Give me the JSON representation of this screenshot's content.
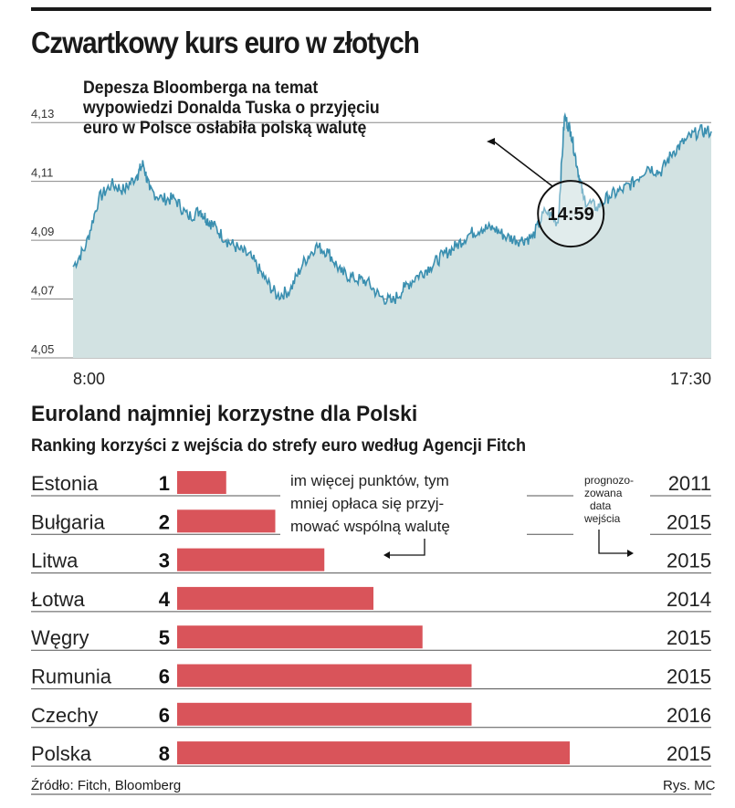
{
  "chart_data": [
    {
      "type": "line",
      "title": "Czwartkowy kurs euro w złotych",
      "x_range_labels": [
        "8:00",
        "17:30"
      ],
      "ylim": [
        4.05,
        4.14
      ],
      "y_ticks": [
        "4,13",
        "4,11",
        "4,09",
        "4,07",
        "4,05"
      ],
      "y_tick_values": [
        4.13,
        4.11,
        4.09,
        4.07,
        4.05
      ],
      "grid": true,
      "fill": "area",
      "x": [
        0,
        0.02,
        0.04,
        0.06,
        0.08,
        0.1,
        0.11,
        0.12,
        0.14,
        0.16,
        0.18,
        0.2,
        0.21,
        0.22,
        0.24,
        0.26,
        0.28,
        0.3,
        0.32,
        0.34,
        0.36,
        0.38,
        0.4,
        0.42,
        0.44,
        0.46,
        0.48,
        0.5,
        0.52,
        0.54,
        0.56,
        0.58,
        0.6,
        0.62,
        0.64,
        0.66,
        0.68,
        0.7,
        0.72,
        0.74,
        0.76,
        0.77,
        0.78,
        0.79,
        0.8,
        0.82,
        0.84,
        0.86,
        0.88,
        0.9,
        0.92,
        0.94,
        0.96,
        0.98,
        1.0
      ],
      "values": [
        4.081,
        4.088,
        4.104,
        4.109,
        4.107,
        4.112,
        4.116,
        4.107,
        4.104,
        4.104,
        4.098,
        4.1,
        4.097,
        4.095,
        4.09,
        4.087,
        4.084,
        4.077,
        4.071,
        4.073,
        4.082,
        4.088,
        4.086,
        4.079,
        4.077,
        4.076,
        4.071,
        4.069,
        4.074,
        4.078,
        4.081,
        4.085,
        4.088,
        4.092,
        4.094,
        4.094,
        4.091,
        4.09,
        4.091,
        4.1,
        4.096,
        4.132,
        4.127,
        4.115,
        4.104,
        4.101,
        4.105,
        4.107,
        4.11,
        4.115,
        4.113,
        4.12,
        4.124,
        4.127,
        4.127
      ],
      "annotation_x": 0.78,
      "annotation_y": 4.099,
      "annotation_time": "14:59",
      "annotation_text": [
        "Depesza Bloomberga na temat",
        "wypowiedzi Donalda Tuska o przyjęciu",
        "euro w Polsce osłabiła polską walutę"
      ],
      "colors": {
        "line": "#3a8fb0",
        "fill": "#d2e2e2",
        "grid": "#888888"
      }
    },
    {
      "type": "bar",
      "title": "Euroland najmniej korzystne dla Polski",
      "subtitle": "Ranking korzyści z wejścia do strefy euro według Agencji Fitch",
      "categories": [
        "Estonia",
        "Bułgaria",
        "Litwa",
        "Łotwa",
        "Węgry",
        "Rumunia",
        "Czechy",
        "Polska"
      ],
      "values": [
        1,
        2,
        3,
        4,
        5,
        6,
        6,
        8
      ],
      "rank_labels": [
        "1",
        "2",
        "3",
        "4",
        "5",
        "6",
        "6",
        "8"
      ],
      "years": [
        "2011",
        "2015",
        "2015",
        "2014",
        "2015",
        "2015",
        "2016",
        "2015"
      ],
      "xlim": [
        0,
        8
      ],
      "note": [
        "im więcej punktów, tym",
        "mniej opłaca się przyj-",
        "mować wspólną walutę"
      ],
      "year_note": [
        "prognozo-",
        "zowana",
        "data",
        "wejścia"
      ],
      "colors": {
        "bar": "#d9545a"
      }
    }
  ],
  "footer": {
    "source": "Źródło: Fitch, Bloomberg",
    "credit": "Rys. MC"
  }
}
